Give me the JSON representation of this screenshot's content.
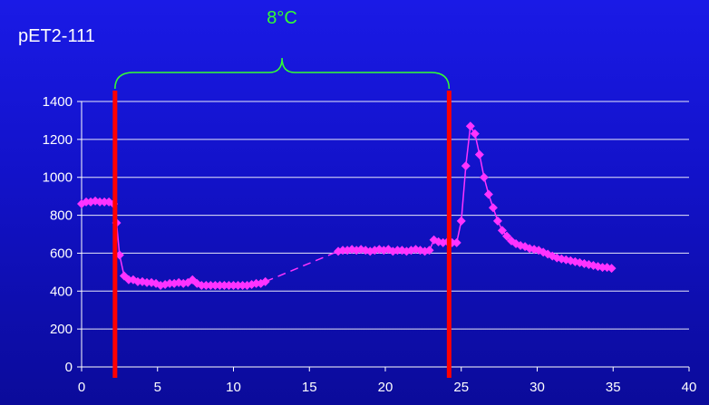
{
  "chart_data": {
    "type": "line",
    "title": "pET2-111",
    "xlim": [
      0,
      40
    ],
    "ylim": [
      0,
      1400
    ],
    "x_ticks": [
      0,
      5,
      10,
      15,
      20,
      25,
      30,
      35,
      40
    ],
    "y_ticks": [
      0,
      200,
      400,
      600,
      800,
      1000,
      1200,
      1400
    ],
    "grid": "horizontal",
    "legend": "none",
    "series": [
      {
        "color": "#ff33ff",
        "marker": "diamond",
        "x": [
          0,
          0.3,
          0.6,
          0.9,
          1.2,
          1.5,
          1.8,
          2.1,
          2.3,
          2.5,
          2.8,
          3.1,
          3.4,
          3.7,
          4.0,
          4.3,
          4.6,
          4.9,
          5.2,
          5.5,
          5.8,
          6.1,
          6.4,
          6.7,
          7.0,
          7.3,
          7.6,
          7.9,
          8.2,
          8.5,
          8.8,
          9.1,
          9.4,
          9.7,
          10.0,
          10.3,
          10.6,
          10.9,
          11.2,
          11.5,
          11.8,
          12.1
        ],
        "y": [
          860,
          870,
          870,
          875,
          870,
          870,
          870,
          860,
          760,
          590,
          480,
          460,
          460,
          450,
          450,
          445,
          445,
          440,
          430,
          435,
          440,
          440,
          445,
          440,
          445,
          460,
          440,
          430,
          430,
          430,
          430,
          430,
          430,
          430,
          430,
          430,
          430,
          430,
          435,
          440,
          440,
          450
        ]
      },
      {
        "color": "#ff33ff",
        "marker": "none",
        "line_style": "dashed",
        "x": [
          12.1,
          16.9
        ],
        "y": [
          450,
          610
        ]
      },
      {
        "color": "#ff33ff",
        "marker": "diamond",
        "x": [
          16.9,
          17.2,
          17.5,
          17.8,
          18.1,
          18.4,
          18.7,
          19.0,
          19.3,
          19.6,
          19.9,
          20.2,
          20.5,
          20.8,
          21.1,
          21.4,
          21.7,
          22.0,
          22.3,
          22.6,
          22.9,
          23.2,
          23.5,
          23.8,
          24.1,
          24.4,
          24.7,
          25.0,
          25.3,
          25.6,
          25.9,
          26.2,
          26.5,
          26.8,
          27.1,
          27.4,
          27.7,
          28.0,
          28.3,
          28.6,
          28.9,
          29.2,
          29.5,
          29.8,
          30.1,
          30.4,
          30.7,
          31.0,
          31.3,
          31.6,
          31.9,
          32.2,
          32.5,
          32.8,
          33.1,
          33.4,
          33.7,
          34.0,
          34.3,
          34.6,
          34.9
        ],
        "y": [
          610,
          615,
          615,
          620,
          615,
          620,
          615,
          610,
          615,
          620,
          615,
          620,
          610,
          615,
          615,
          610,
          615,
          620,
          615,
          610,
          615,
          670,
          660,
          655,
          660,
          655,
          655,
          770,
          1060,
          1270,
          1230,
          1120,
          1000,
          910,
          840,
          770,
          720,
          690,
          665,
          650,
          640,
          635,
          625,
          620,
          615,
          605,
          595,
          585,
          575,
          570,
          565,
          560,
          555,
          550,
          545,
          540,
          535,
          530,
          525,
          525,
          520
        ]
      }
    ],
    "vertical_markers": [
      {
        "x": 2.2,
        "color": "#ff0000"
      },
      {
        "x": 24.2,
        "color": "#ff0000"
      }
    ],
    "annotation": {
      "label": "8°C",
      "color": "#33ff33",
      "x_from": 2.2,
      "x_to": 24.2
    }
  }
}
